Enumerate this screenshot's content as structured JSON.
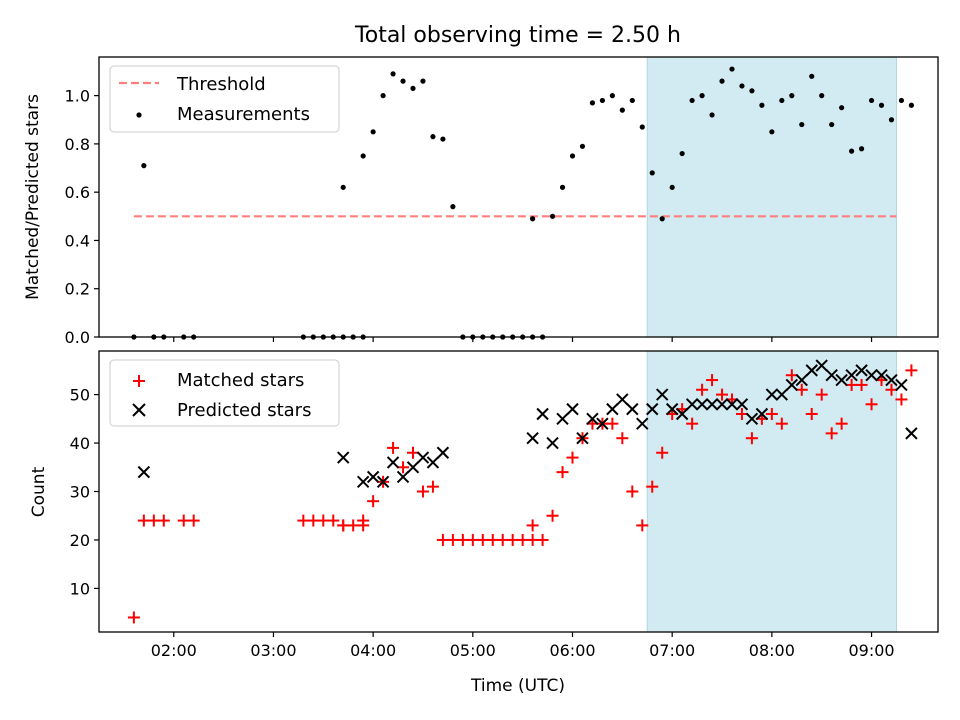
{
  "chart_data": [
    {
      "type": "scatter",
      "title": "Total observing time = 2.50 h",
      "xlabel": "",
      "ylabel": "Matched/Predicted stars",
      "xlim": [
        "01:15",
        "09:40"
      ],
      "ylim": [
        0,
        1.16
      ],
      "yticks": [
        "0.0",
        "0.2",
        "0.4",
        "0.6",
        "0.8",
        "1.0"
      ],
      "highlight_span": [
        "06:45",
        "09:15"
      ],
      "legend": [
        "Threshold",
        "Measurements"
      ],
      "legend_position": "upper left",
      "series": [
        {
          "name": "Threshold",
          "style": "dashed-line",
          "color": "#ff7f7f",
          "x": [
            "01:36",
            "09:15"
          ],
          "y": [
            0.5,
            0.5
          ]
        },
        {
          "name": "Measurements",
          "style": "dot",
          "color": "#000000",
          "x": [
            "01:36",
            "01:42",
            "01:48",
            "01:54",
            "02:06",
            "02:12",
            "03:18",
            "03:24",
            "03:30",
            "03:36",
            "03:42",
            "03:48",
            "03:54",
            "03:42",
            "03:54",
            "04:00",
            "04:06",
            "04:12",
            "04:18",
            "04:24",
            "04:30",
            "04:36",
            "04:42",
            "04:48",
            "04:54",
            "05:00",
            "05:06",
            "05:12",
            "05:18",
            "05:24",
            "05:30",
            "05:36",
            "05:42",
            "05:36",
            "05:48",
            "05:54",
            "06:00",
            "06:06",
            "06:12",
            "06:18",
            "06:24",
            "06:30",
            "06:36",
            "06:42",
            "06:48",
            "06:54",
            "07:00",
            "07:06",
            "07:12",
            "07:18",
            "07:24",
            "07:30",
            "07:36",
            "07:42",
            "07:48",
            "07:54",
            "08:00",
            "08:06",
            "08:12",
            "08:18",
            "08:24",
            "08:30",
            "08:36",
            "08:42",
            "08:48",
            "08:54",
            "09:00",
            "09:06",
            "09:12",
            "09:18",
            "09:24"
          ],
          "y": [
            0,
            0.71,
            0,
            0,
            0,
            0,
            0,
            0,
            0,
            0,
            0,
            0,
            0,
            0.62,
            0.75,
            0.85,
            1.0,
            1.09,
            1.06,
            1.03,
            1.06,
            0.83,
            0.82,
            0.54,
            0,
            0,
            0,
            0,
            0,
            0,
            0,
            0,
            0,
            0.49,
            0.5,
            0.62,
            0.75,
            0.79,
            0.97,
            0.98,
            1.0,
            0.94,
            0.98,
            0.87,
            0.68,
            0.49,
            0.62,
            0.76,
            0.98,
            1.0,
            0.92,
            1.06,
            1.11,
            1.04,
            1.02,
            0.96,
            0.85,
            0.98,
            1.0,
            0.88,
            1.08,
            1.0,
            0.88,
            0.95,
            0.77,
            0.78,
            0.98,
            0.96,
            0.9,
            0.98,
            0.96
          ]
        }
      ]
    },
    {
      "type": "scatter",
      "title": "",
      "xlabel": "Time (UTC)",
      "ylabel": "Count",
      "xlim": [
        "01:15",
        "09:40"
      ],
      "ylim": [
        1,
        59
      ],
      "xticks": [
        "02:00",
        "03:00",
        "04:00",
        "05:00",
        "06:00",
        "07:00",
        "08:00",
        "09:00"
      ],
      "yticks": [
        "10",
        "20",
        "30",
        "40",
        "50"
      ],
      "highlight_span": [
        "06:45",
        "09:15"
      ],
      "legend": [
        "Matched stars",
        "Predicted stars"
      ],
      "legend_position": "upper left",
      "series": [
        {
          "name": "Matched stars",
          "style": "plus",
          "color": "#ff0000",
          "x": [
            "01:36",
            "01:42",
            "01:48",
            "01:54",
            "02:06",
            "02:12",
            "03:18",
            "03:24",
            "03:30",
            "03:36",
            "03:42",
            "03:48",
            "03:54",
            "03:42",
            "03:54",
            "04:00",
            "04:06",
            "04:12",
            "04:18",
            "04:24",
            "04:30",
            "04:36",
            "04:42",
            "04:48",
            "04:54",
            "05:00",
            "05:06",
            "05:12",
            "05:18",
            "05:24",
            "05:30",
            "05:36",
            "05:42",
            "05:36",
            "05:48",
            "05:54",
            "06:00",
            "06:06",
            "06:12",
            "06:18",
            "06:24",
            "06:30",
            "06:36",
            "06:42",
            "06:48",
            "06:54",
            "07:00",
            "07:06",
            "07:12",
            "07:18",
            "07:24",
            "07:30",
            "07:36",
            "07:42",
            "07:48",
            "07:54",
            "08:00",
            "08:06",
            "08:12",
            "08:18",
            "08:24",
            "08:30",
            "08:36",
            "08:42",
            "08:48",
            "08:54",
            "09:00",
            "09:06",
            "09:12",
            "09:18",
            "09:24"
          ],
          "y": [
            4,
            24,
            24,
            24,
            24,
            24,
            24,
            24,
            24,
            24,
            23,
            23,
            24,
            23,
            23,
            28,
            32,
            39,
            35,
            38,
            30,
            31,
            20,
            20,
            20,
            20,
            20,
            20,
            20,
            20,
            20,
            20,
            20,
            23,
            25,
            34,
            37,
            41,
            44,
            44,
            44,
            41,
            30,
            23,
            31,
            38,
            46,
            47,
            44,
            51,
            53,
            50,
            49,
            46,
            41,
            45,
            46,
            44,
            54,
            51,
            46,
            50,
            42,
            44,
            52,
            52,
            48,
            53,
            51,
            49,
            55
          ]
        },
        {
          "name": "Predicted stars",
          "style": "x",
          "color": "#000000",
          "x": [
            "01:42",
            "03:42",
            "03:54",
            "04:00",
            "04:06",
            "04:12",
            "04:18",
            "04:24",
            "04:30",
            "04:36",
            "04:42",
            "05:36",
            "05:42",
            "05:48",
            "05:54",
            "06:00",
            "06:06",
            "06:12",
            "06:18",
            "06:24",
            "06:30",
            "06:36",
            "06:42",
            "06:48",
            "06:54",
            "07:00",
            "07:06",
            "07:12",
            "07:18",
            "07:24",
            "07:30",
            "07:36",
            "07:42",
            "07:48",
            "07:54",
            "08:00",
            "08:06",
            "08:12",
            "08:18",
            "08:24",
            "08:30",
            "08:36",
            "08:42",
            "08:48",
            "08:54",
            "09:00",
            "09:06",
            "09:12",
            "09:18",
            "09:24"
          ],
          "y": [
            34,
            37,
            32,
            33,
            32,
            36,
            33,
            35,
            37,
            36,
            38,
            41,
            46,
            40,
            45,
            47,
            41,
            45,
            44,
            47,
            49,
            47,
            44,
            47,
            50,
            47,
            46,
            48,
            48,
            48,
            48,
            48,
            48,
            45,
            46,
            50,
            50,
            52,
            53,
            55,
            56,
            54,
            53,
            54,
            55,
            54,
            54,
            53,
            52,
            42
          ]
        }
      ]
    }
  ]
}
